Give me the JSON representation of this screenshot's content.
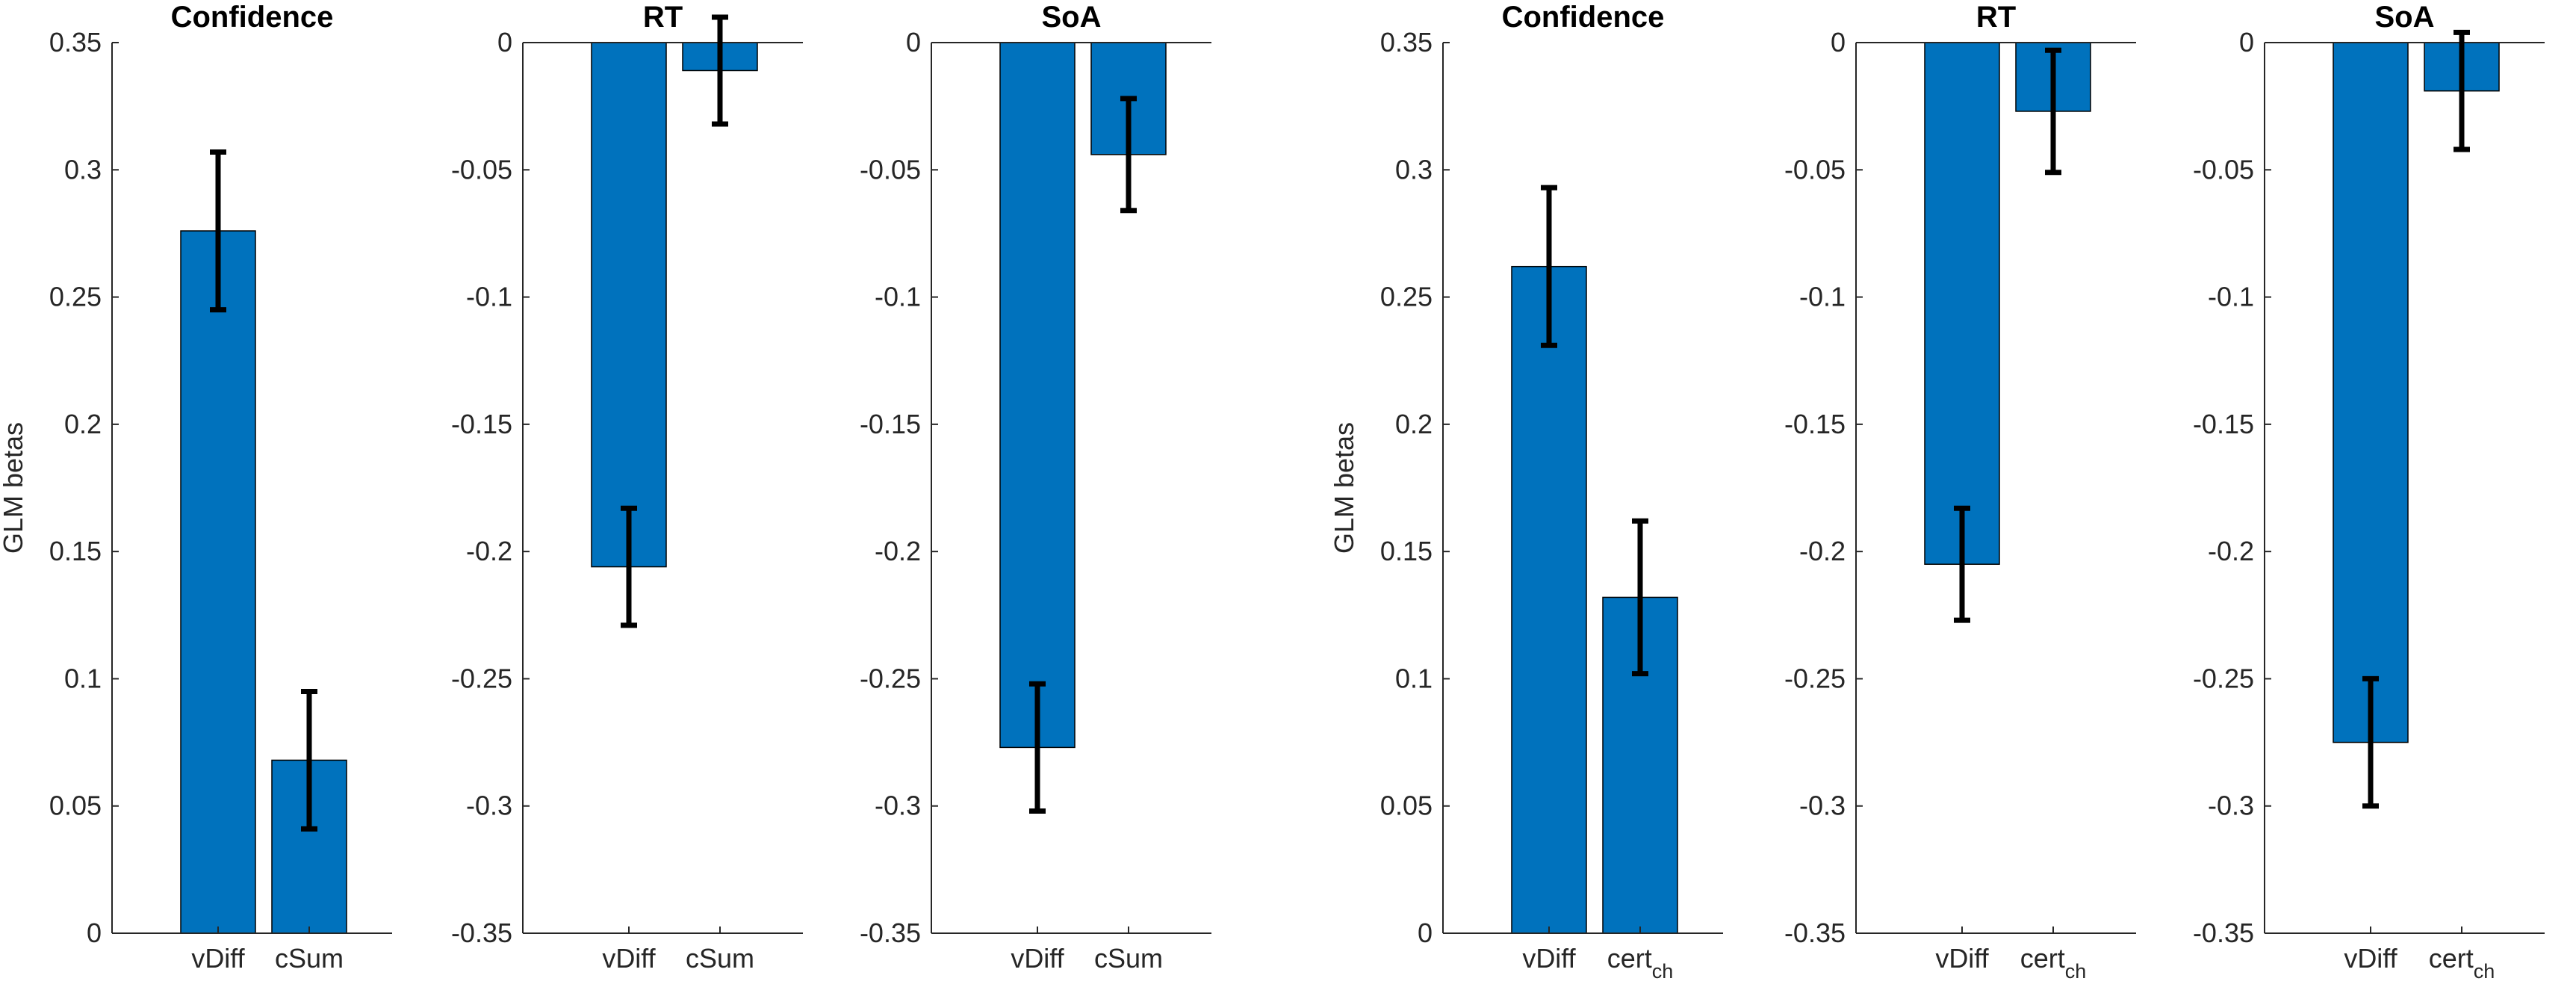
{
  "figure": {
    "bar_color": "#0072BD",
    "axis_color": "#262626",
    "errorbar_color": "#000000"
  },
  "chart_data": [
    {
      "type": "bar",
      "title": "Confidence",
      "ylabel": "GLM betas",
      "ylim": [
        0,
        0.35
      ],
      "yticks": [
        0,
        0.05,
        0.1,
        0.15,
        0.2,
        0.25,
        0.3,
        0.35
      ],
      "ytick_labels": [
        "0",
        "0.05",
        "0.1",
        "0.15",
        "0.2",
        "0.25",
        "0.3",
        "0.35"
      ],
      "categories": [
        {
          "label": "vDiff",
          "sub": ""
        },
        {
          "label": "cSum",
          "sub": ""
        }
      ],
      "values": [
        0.276,
        0.068
      ],
      "errors": [
        0.031,
        0.027
      ]
    },
    {
      "type": "bar",
      "title": "RT",
      "ylabel": "",
      "ylim": [
        -0.35,
        0
      ],
      "yticks": [
        0,
        -0.05,
        -0.1,
        -0.15,
        -0.2,
        -0.25,
        -0.3,
        -0.35
      ],
      "ytick_labels": [
        "0",
        "-0.05",
        "-0.1",
        "-0.15",
        "-0.2",
        "-0.25",
        "-0.3",
        "-0.35"
      ],
      "categories": [
        {
          "label": "vDiff",
          "sub": ""
        },
        {
          "label": "cSum",
          "sub": ""
        }
      ],
      "values": [
        -0.206,
        -0.011
      ],
      "errors": [
        0.023,
        0.021
      ]
    },
    {
      "type": "bar",
      "title": "SoA",
      "ylabel": "",
      "ylim": [
        -0.35,
        0
      ],
      "yticks": [
        0,
        -0.05,
        -0.1,
        -0.15,
        -0.2,
        -0.25,
        -0.3,
        -0.35
      ],
      "ytick_labels": [
        "0",
        "-0.05",
        "-0.1",
        "-0.15",
        "-0.2",
        "-0.25",
        "-0.3",
        "-0.35"
      ],
      "categories": [
        {
          "label": "vDiff",
          "sub": ""
        },
        {
          "label": "cSum",
          "sub": ""
        }
      ],
      "values": [
        -0.277,
        -0.044
      ],
      "errors": [
        0.025,
        0.022
      ]
    },
    {
      "type": "bar",
      "title": "Confidence",
      "ylabel": "GLM betas",
      "ylim": [
        0,
        0.35
      ],
      "yticks": [
        0,
        0.05,
        0.1,
        0.15,
        0.2,
        0.25,
        0.3,
        0.35
      ],
      "ytick_labels": [
        "0",
        "0.05",
        "0.1",
        "0.15",
        "0.2",
        "0.25",
        "0.3",
        "0.35"
      ],
      "categories": [
        {
          "label": "vDiff",
          "sub": ""
        },
        {
          "label": "cert",
          "sub": "ch"
        }
      ],
      "values": [
        0.262,
        0.132
      ],
      "errors": [
        0.031,
        0.03
      ]
    },
    {
      "type": "bar",
      "title": "RT",
      "ylabel": "",
      "ylim": [
        -0.35,
        0
      ],
      "yticks": [
        0,
        -0.05,
        -0.1,
        -0.15,
        -0.2,
        -0.25,
        -0.3,
        -0.35
      ],
      "ytick_labels": [
        "0",
        "-0.05",
        "-0.1",
        "-0.15",
        "-0.2",
        "-0.25",
        "-0.3",
        "-0.35"
      ],
      "categories": [
        {
          "label": "vDiff",
          "sub": ""
        },
        {
          "label": "cert",
          "sub": "ch"
        }
      ],
      "values": [
        -0.205,
        -0.027
      ],
      "errors": [
        0.022,
        0.024
      ]
    },
    {
      "type": "bar",
      "title": "SoA",
      "ylabel": "",
      "ylim": [
        -0.35,
        0
      ],
      "yticks": [
        0,
        -0.05,
        -0.1,
        -0.15,
        -0.2,
        -0.25,
        -0.3,
        -0.35
      ],
      "ytick_labels": [
        "0",
        "-0.05",
        "-0.1",
        "-0.15",
        "-0.2",
        "-0.25",
        "-0.3",
        "-0.35"
      ],
      "categories": [
        {
          "label": "vDiff",
          "sub": ""
        },
        {
          "label": "cert",
          "sub": "ch"
        }
      ],
      "values": [
        -0.275,
        -0.019
      ],
      "errors": [
        0.025,
        0.023
      ]
    }
  ]
}
